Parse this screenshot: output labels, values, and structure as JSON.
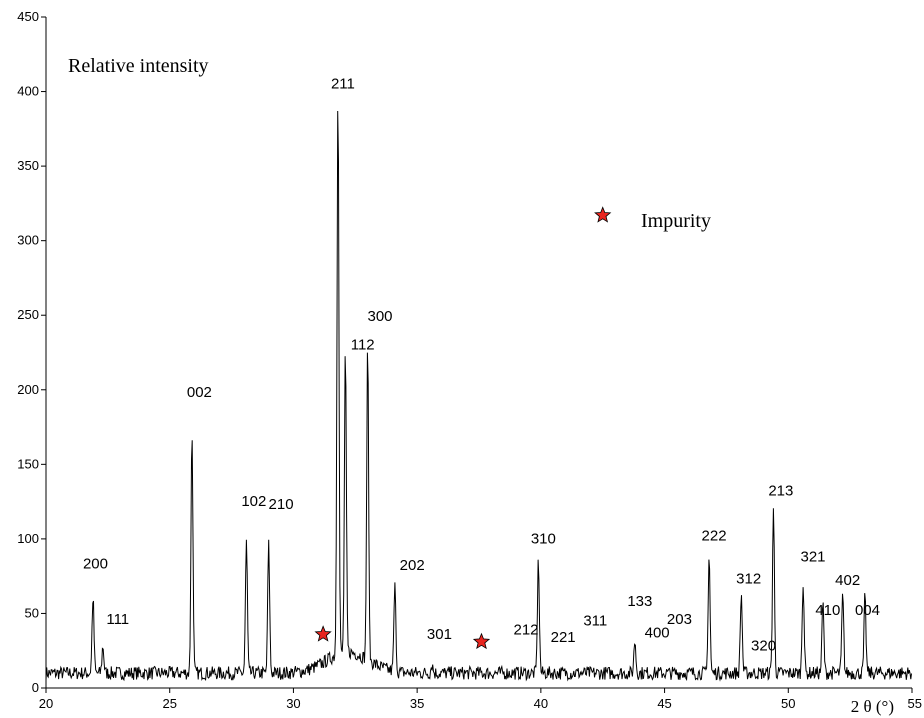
{
  "chart_data": {
    "type": "line",
    "title": "",
    "ylabel": "Relative intensity",
    "xlabel": "2 θ (°)",
    "xlim": [
      20,
      55
    ],
    "ylim": [
      0,
      450
    ],
    "x_ticks": [
      20,
      25,
      30,
      35,
      40,
      45,
      50,
      55
    ],
    "y_ticks": [
      0,
      50,
      100,
      150,
      200,
      250,
      300,
      350,
      400,
      450
    ],
    "x_tick_labels": [
      "20",
      "25",
      "30",
      "35",
      "40",
      "45",
      "50",
      "55"
    ],
    "y_tick_labels": [
      "0",
      "50",
      "100",
      "150",
      "200",
      "250",
      "300",
      "350",
      "400",
      "450"
    ],
    "baseline": 10,
    "peaks": [
      {
        "x": 21.9,
        "y": 61
      },
      {
        "x": 22.3,
        "y": 28
      },
      {
        "x": 25.9,
        "y": 172
      },
      {
        "x": 28.1,
        "y": 98
      },
      {
        "x": 29.0,
        "y": 96
      },
      {
        "x": 31.8,
        "y": 391
      },
      {
        "x": 32.1,
        "y": 211
      },
      {
        "x": 33.0,
        "y": 219
      },
      {
        "x": 34.1,
        "y": 67
      },
      {
        "x": 35.6,
        "y": 16
      },
      {
        "x": 39.9,
        "y": 85
      },
      {
        "x": 43.8,
        "y": 32
      },
      {
        "x": 46.8,
        "y": 90
      },
      {
        "x": 48.1,
        "y": 63
      },
      {
        "x": 49.4,
        "y": 121
      },
      {
        "x": 50.6,
        "y": 72
      },
      {
        "x": 51.4,
        "y": 57
      },
      {
        "x": 52.2,
        "y": 62
      },
      {
        "x": 53.1,
        "y": 61
      }
    ],
    "annotations": [
      {
        "text": "200",
        "x": 22.0,
        "y": 80
      },
      {
        "text": "111",
        "x": 22.9,
        "y": 43
      },
      {
        "text": "002",
        "x": 26.2,
        "y": 195
      },
      {
        "text": "102",
        "x": 28.4,
        "y": 122
      },
      {
        "text": "210",
        "x": 29.5,
        "y": 120
      },
      {
        "text": "211",
        "x": 32.0,
        "y": 402
      },
      {
        "text": "300",
        "x": 33.5,
        "y": 246
      },
      {
        "text": "112",
        "x": 32.8,
        "y": 227
      },
      {
        "text": "202",
        "x": 34.8,
        "y": 79
      },
      {
        "text": "301",
        "x": 35.9,
        "y": 33
      },
      {
        "text": "310",
        "x": 40.1,
        "y": 97
      },
      {
        "text": "212",
        "x": 39.4,
        "y": 36
      },
      {
        "text": "221",
        "x": 40.9,
        "y": 31
      },
      {
        "text": "311",
        "x": 42.2,
        "y": 42
      },
      {
        "text": "133",
        "x": 44.0,
        "y": 55
      },
      {
        "text": "400",
        "x": 44.7,
        "y": 34
      },
      {
        "text": "203",
        "x": 45.6,
        "y": 43
      },
      {
        "text": "222",
        "x": 47.0,
        "y": 99
      },
      {
        "text": "312",
        "x": 48.4,
        "y": 70
      },
      {
        "text": "320",
        "x": 49.0,
        "y": 25
      },
      {
        "text": "213",
        "x": 49.7,
        "y": 129
      },
      {
        "text": "321",
        "x": 51.0,
        "y": 85
      },
      {
        "text": "410",
        "x": 51.6,
        "y": 49
      },
      {
        "text": "402",
        "x": 52.4,
        "y": 69
      },
      {
        "text": "004",
        "x": 53.2,
        "y": 49
      }
    ],
    "impurity_markers": [
      {
        "x": 31.2,
        "y": 36
      },
      {
        "x": 37.6,
        "y": 31
      }
    ],
    "legend": {
      "label": "Impurity",
      "marker_x": 42.5,
      "marker_y": 317
    },
    "colors": {
      "line": "#000000",
      "marker_fill": "#e8251f",
      "marker_stroke": "#000000",
      "axis": "#000000"
    }
  }
}
